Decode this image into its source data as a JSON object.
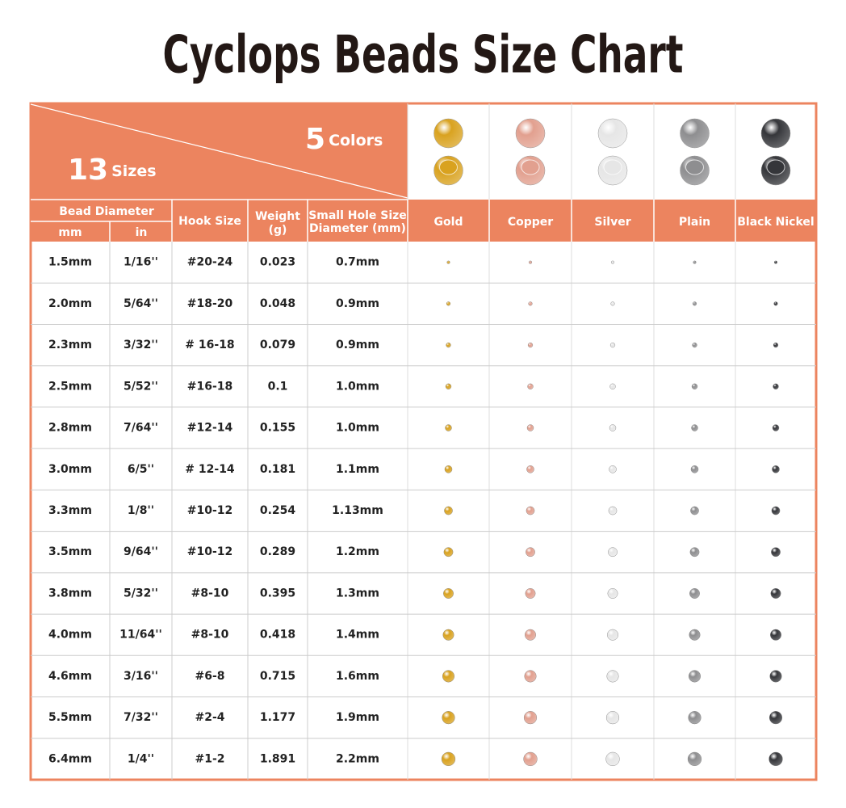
{
  "title": "Cyclops Beads Size Chart",
  "header": {
    "sizes_count": "13",
    "sizes_label": "Sizes",
    "colors_count": "5",
    "colors_label": "Colors"
  },
  "columns": {
    "bead_diameter": "Bead Diameter",
    "mm": "mm",
    "in": "in",
    "hook_size": "Hook Size",
    "weight": "Weight",
    "weight_unit": "(g)",
    "hole_line1": "Small Hole Size",
    "hole_line2": "Diameter (mm)"
  },
  "colors": [
    {
      "name": "Gold",
      "color": "#d9a21f"
    },
    {
      "name": "Copper",
      "color": "#e2a08f"
    },
    {
      "name": "Silver",
      "color": "#e6e6e6"
    },
    {
      "name": "Plain",
      "color": "#8e8e90"
    },
    {
      "name": "Black Nickel",
      "color": "#35363a"
    }
  ],
  "table": {
    "rows": [
      [
        "1.5mm",
        "1/16''",
        "#20-24",
        "0.023",
        "0.7mm"
      ],
      [
        "2.0mm",
        "5/64''",
        "#18-20",
        "0.048",
        "0.9mm"
      ],
      [
        "2.3mm",
        "3/32''",
        "# 16-18",
        "0.079",
        "0.9mm"
      ],
      [
        "2.5mm",
        "5/52''",
        "#16-18",
        "0.1",
        "1.0mm"
      ],
      [
        "2.8mm",
        "7/64''",
        "#12-14",
        "0.155",
        "1.0mm"
      ],
      [
        "3.0mm",
        "6/5''",
        "# 12-14",
        "0.181",
        "1.1mm"
      ],
      [
        "3.3mm",
        "1/8''",
        "#10-12",
        "0.254",
        "1.13mm"
      ],
      [
        "3.5mm",
        "9/64''",
        "#10-12",
        "0.289",
        "1.2mm"
      ],
      [
        "3.8mm",
        "5/32''",
        "#8-10",
        "0.395",
        "1.3mm"
      ],
      [
        "4.0mm",
        "11/64''",
        "#8-10",
        "0.418",
        "1.4mm"
      ],
      [
        "4.6mm",
        "3/16''",
        "#6-8",
        "0.715",
        "1.6mm"
      ],
      [
        "5.5mm",
        "7/32''",
        "#2-4",
        "1.177",
        "1.9mm"
      ],
      [
        "6.4mm",
        "1/4''",
        "#1-2",
        "1.891",
        "2.2mm"
      ]
    ]
  }
}
